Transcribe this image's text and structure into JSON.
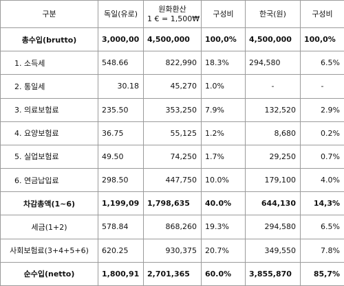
{
  "headers": {
    "item": "구분",
    "germany": "독일(유로)",
    "conversion_line1": "원화환산",
    "conversion_line2": "1 € = 1,500₩",
    "share1": "구성비",
    "korea": "한국(원)",
    "share2": "구성비"
  },
  "rows": [
    {
      "label": "총수입(brutto)",
      "de": "3,000,00",
      "krw": "4,500,000",
      "share_de": "100,0%",
      "kr": "4,500,000",
      "share_kr": "100,0%"
    },
    {
      "label": "1.  소득세",
      "de": "548.66",
      "krw": "822,990",
      "share_de": "18.3%",
      "kr": "294,580",
      "share_kr": "6.5%"
    },
    {
      "label": "2.  통일세",
      "de": "30.18",
      "krw": "45,270",
      "share_de": "1.0%",
      "kr": "-",
      "share_kr": "-"
    },
    {
      "label": "3.  의료보험료",
      "de": "235.50",
      "krw": "353,250",
      "share_de": "7.9%",
      "kr": "132,520",
      "share_kr": "2.9%"
    },
    {
      "label": "4.  요양보험료",
      "de": "36.75",
      "krw": "55,125",
      "share_de": "1.2%",
      "kr": "8,680",
      "share_kr": "0.2%"
    },
    {
      "label": "5.  실업보험료",
      "de": "49.50",
      "krw": "74,250",
      "share_de": "1.7%",
      "kr": "29,250",
      "share_kr": "0.7%"
    },
    {
      "label": "6.  연금납입료",
      "de": "298.50",
      "krw": "447,750",
      "share_de": "10.0%",
      "kr": "179,100",
      "share_kr": "4.0%"
    },
    {
      "label": "차감총액(1~6)",
      "de": "1,199,09",
      "krw": "1,798,635",
      "share_de": "40.0%",
      "kr": "644,130",
      "share_kr": "14,3%"
    },
    {
      "label": "세금(1+2)",
      "de": "578.84",
      "krw": "868,260",
      "share_de": "19.3%",
      "kr": "294,580",
      "share_kr": "6.5%"
    },
    {
      "label": "사회보험료(3+4+5+6)",
      "de": "620.25",
      "krw": "930,375",
      "share_de": "20.7%",
      "kr": "349,550",
      "share_kr": "7.8%"
    },
    {
      "label": "순수입(netto)",
      "de": "1,800,91",
      "krw": "2,701,365",
      "share_de": "60.0%",
      "kr": "3,855,870",
      "share_kr": "85,7%"
    }
  ]
}
